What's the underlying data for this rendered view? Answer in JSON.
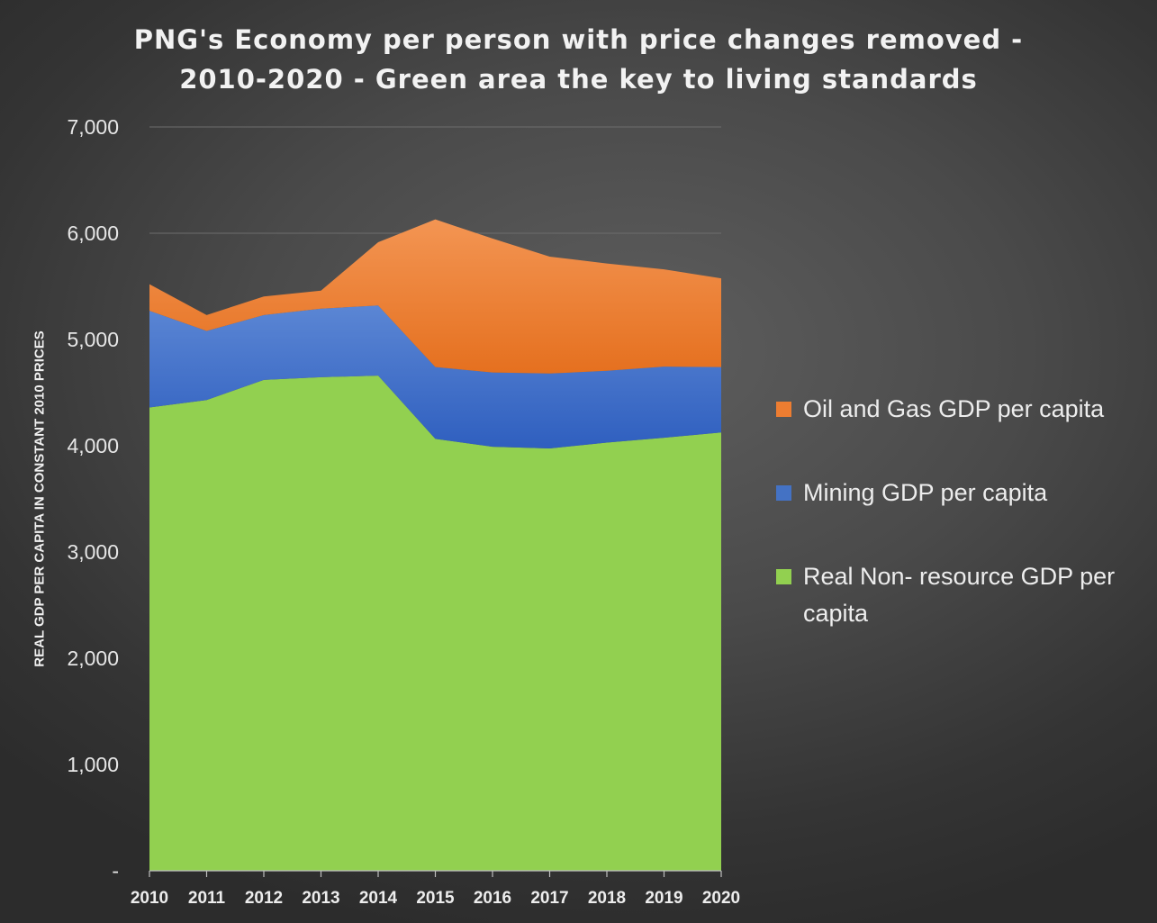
{
  "chart_data": {
    "type": "area",
    "stacked": true,
    "title_line1": "PNG's Economy per person with price changes removed -",
    "title_line2": "2010-2020 - Green area the key to living standards",
    "xlabel": "",
    "ylabel": "REAL GDP PER CAPITA IN CONSTANT 2010 PRICES",
    "x": [
      "2010",
      "2011",
      "2012",
      "2013",
      "2014",
      "2015",
      "2016",
      "2017",
      "2018",
      "2019",
      "2020"
    ],
    "ylim": [
      0,
      7000
    ],
    "y_ticks": [
      0,
      1000,
      2000,
      3000,
      4000,
      5000,
      6000,
      7000
    ],
    "y_tick_labels": [
      "-",
      "1,000",
      "2,000",
      "3,000",
      "4,000",
      "5,000",
      "6,000",
      "7,000"
    ],
    "grid": true,
    "legend_position": "right",
    "series": [
      {
        "name": "Real Non- resource GDP per capita",
        "color": "#92d050",
        "values": [
          4360,
          4430,
          4620,
          4645,
          4660,
          4065,
          3990,
          3975,
          4030,
          4075,
          4125
        ]
      },
      {
        "name": "Mining GDP per capita",
        "color": "#4472c4",
        "values": [
          910,
          650,
          610,
          645,
          660,
          675,
          700,
          705,
          675,
          670,
          615
        ]
      },
      {
        "name": "Oil and Gas GDP per capita",
        "color": "#ed7d31",
        "values": [
          250,
          150,
          175,
          170,
          595,
          1390,
          1260,
          1100,
          1010,
          915,
          835
        ]
      }
    ],
    "legend_order": [
      2,
      1,
      0
    ]
  }
}
